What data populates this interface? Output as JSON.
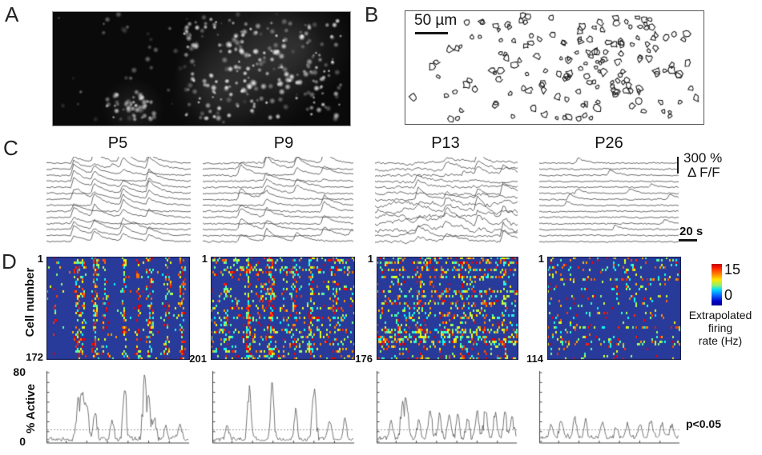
{
  "figure_labels": {
    "a": "A",
    "b": "B",
    "c": "C",
    "d": "D"
  },
  "panel_b": {
    "scale_bar_label": "50 µm"
  },
  "panel_c": {
    "titles": [
      "P5",
      "P9",
      "P13",
      "P26"
    ],
    "amplitude_scale": {
      "value": "300 %",
      "unit": "Δ F/F"
    },
    "time_scale": "20 s"
  },
  "panel_d": {
    "y_axis_label": "Cell number",
    "heatmaps": [
      {
        "first_cell": "1",
        "last_cell": "172"
      },
      {
        "first_cell": "1",
        "last_cell": "201"
      },
      {
        "first_cell": "1",
        "last_cell": "176"
      },
      {
        "first_cell": "1",
        "last_cell": "114"
      }
    ],
    "colorbar": {
      "max": "15",
      "min": "0",
      "caption_line1": "Extrapolated",
      "caption_line2": "firing",
      "caption_line3": "rate (Hz)"
    },
    "activity": {
      "y_axis_label": "% Active",
      "y_max": "80",
      "y_min": "0",
      "significance": "p<0.05"
    }
  },
  "chart_data": [
    {
      "type": "heatmap",
      "subtype": "raster-firing-rate",
      "ages": [
        "P5",
        "P9",
        "P13",
        "P26"
      ],
      "value_range": [
        0,
        15
      ],
      "value_label": "Extrapolated firing rate (Hz)",
      "colormap": "jet",
      "ylabel": "Cell number",
      "panels": [
        {
          "age": "P5",
          "n_cells": 172,
          "speckle_density": 0.022,
          "row_streaks": 0.15,
          "sync_events": [
            {
              "x": 0.05,
              "s": 0.35
            },
            {
              "x": 0.21,
              "s": 0.95
            },
            {
              "x": 0.24,
              "s": 0.6
            },
            {
              "x": 0.33,
              "s": 0.9
            },
            {
              "x": 0.4,
              "s": 0.4
            },
            {
              "x": 0.53,
              "s": 0.85
            },
            {
              "x": 0.63,
              "s": 0.5
            },
            {
              "x": 0.71,
              "s": 0.85
            },
            {
              "x": 0.83,
              "s": 0.6
            },
            {
              "x": 0.93,
              "s": 0.8
            }
          ]
        },
        {
          "age": "P9",
          "n_cells": 201,
          "speckle_density": 0.075,
          "row_streaks": 0.55,
          "sync_events": [
            {
              "x": 0.1,
              "s": 0.4
            },
            {
              "x": 0.25,
              "s": 0.95
            },
            {
              "x": 0.41,
              "s": 0.9
            },
            {
              "x": 0.58,
              "s": 0.55
            },
            {
              "x": 0.69,
              "s": 0.9
            },
            {
              "x": 0.85,
              "s": 0.45
            }
          ]
        },
        {
          "age": "P13",
          "n_cells": 176,
          "speckle_density": 0.13,
          "row_streaks": 0.45,
          "sync_events": [
            {
              "x": 0.15,
              "s": 0.3
            },
            {
              "x": 0.3,
              "s": 0.35
            },
            {
              "x": 0.45,
              "s": 0.3
            },
            {
              "x": 0.6,
              "s": 0.4
            },
            {
              "x": 0.75,
              "s": 0.35
            },
            {
              "x": 0.9,
              "s": 0.35
            }
          ]
        },
        {
          "age": "P26",
          "n_cells": 114,
          "speckle_density": 0.09,
          "row_streaks": 0.15,
          "sync_events": []
        }
      ]
    },
    {
      "type": "line",
      "subtype": "calcium-traces",
      "n_traces_per_panel": 14,
      "amplitude_scale_pct": 300,
      "amplitude_unit": "ΔF/F",
      "time_scale_s": 20,
      "panels": [
        {
          "age": "P5",
          "events": [
            0.19,
            0.33,
            0.53,
            0.71
          ],
          "participation": 0.85,
          "noise": 1.0,
          "slow": 0.35
        },
        {
          "age": "P9",
          "events": [
            0.25,
            0.42,
            0.62,
            0.8
          ],
          "participation": 0.5,
          "noise": 1.1,
          "slow": 0.6
        },
        {
          "age": "P13",
          "events": [
            0.3,
            0.5,
            0.72,
            0.9
          ],
          "participation": 0.45,
          "noise": 1.5,
          "slow": 1.7
        },
        {
          "age": "P26",
          "events": [],
          "participation": 0.0,
          "noise": 1.0,
          "slow": 0.45
        }
      ]
    },
    {
      "type": "line",
      "subtype": "percent-active",
      "ylabel": "% Active",
      "ylim": [
        0,
        80
      ],
      "threshold_value": 15,
      "threshold_label": "p<0.05",
      "panels": [
        {
          "age": "P5",
          "baseline": 3,
          "noise": 4,
          "peaks": [
            {
              "x": 0.22,
              "h": 46
            },
            {
              "x": 0.25,
              "h": 50
            },
            {
              "x": 0.28,
              "h": 36
            },
            {
              "x": 0.34,
              "h": 30
            },
            {
              "x": 0.46,
              "h": 20
            },
            {
              "x": 0.55,
              "h": 58
            },
            {
              "x": 0.69,
              "h": 68
            },
            {
              "x": 0.72,
              "h": 40
            },
            {
              "x": 0.76,
              "h": 24
            },
            {
              "x": 0.84,
              "h": 14
            },
            {
              "x": 0.94,
              "h": 18
            }
          ]
        },
        {
          "age": "P9",
          "baseline": 3,
          "noise": 3.5,
          "peaks": [
            {
              "x": 0.1,
              "h": 18
            },
            {
              "x": 0.26,
              "h": 62
            },
            {
              "x": 0.42,
              "h": 60
            },
            {
              "x": 0.59,
              "h": 33
            },
            {
              "x": 0.72,
              "h": 58
            },
            {
              "x": 0.83,
              "h": 22
            },
            {
              "x": 0.94,
              "h": 26
            }
          ]
        },
        {
          "age": "P13",
          "baseline": 4,
          "noise": 5,
          "peaks": [
            {
              "x": 0.1,
              "h": 20
            },
            {
              "x": 0.18,
              "h": 38
            },
            {
              "x": 0.21,
              "h": 42
            },
            {
              "x": 0.3,
              "h": 22
            },
            {
              "x": 0.38,
              "h": 30
            },
            {
              "x": 0.45,
              "h": 28
            },
            {
              "x": 0.52,
              "h": 25
            },
            {
              "x": 0.58,
              "h": 28
            },
            {
              "x": 0.65,
              "h": 22
            },
            {
              "x": 0.72,
              "h": 30
            },
            {
              "x": 0.78,
              "h": 35
            },
            {
              "x": 0.85,
              "h": 28
            },
            {
              "x": 0.92,
              "h": 32
            },
            {
              "x": 0.97,
              "h": 25
            }
          ]
        },
        {
          "age": "P26",
          "baseline": 6,
          "noise": 6,
          "peaks": [
            {
              "x": 0.08,
              "h": 16
            },
            {
              "x": 0.15,
              "h": 20
            },
            {
              "x": 0.25,
              "h": 24
            },
            {
              "x": 0.33,
              "h": 18
            },
            {
              "x": 0.45,
              "h": 15
            },
            {
              "x": 0.55,
              "h": 12
            },
            {
              "x": 0.63,
              "h": 16
            },
            {
              "x": 0.72,
              "h": 14
            },
            {
              "x": 0.8,
              "h": 20
            },
            {
              "x": 0.88,
              "h": 16
            },
            {
              "x": 0.95,
              "h": 13
            }
          ]
        }
      ]
    }
  ]
}
